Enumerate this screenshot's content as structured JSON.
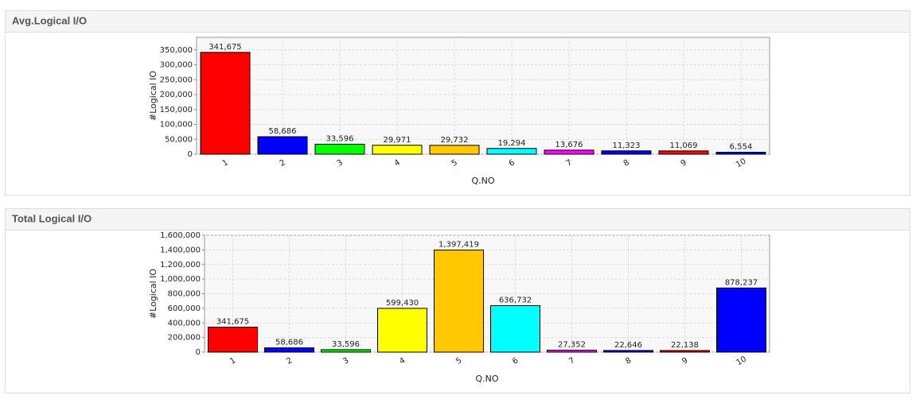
{
  "chart_data": [
    {
      "type": "bar",
      "title": "Avg.Logical I/O",
      "y_label": "#Logical IO",
      "x_label": "Q.NO",
      "categories": [
        "1",
        "2",
        "3",
        "4",
        "5",
        "6",
        "7",
        "8",
        "9",
        "10"
      ],
      "values": [
        341675,
        58686,
        33596,
        29971,
        29732,
        19294,
        13676,
        11323,
        11069,
        6554
      ],
      "value_labels": [
        "341,675",
        "58,686",
        "33,596",
        "29,971",
        "29,732",
        "19,294",
        "13,676",
        "11,323",
        "11,069",
        "6,554"
      ],
      "colors": [
        "#ff0000",
        "#0000ff",
        "#00ff00",
        "#ffff00",
        "#ffc800",
        "#00ffff",
        "#ff00ff",
        "#0000ff",
        "#ff0000",
        "#0000ff"
      ],
      "ylim": [
        0,
        392000
      ],
      "yticks": [
        0,
        {
          "value": 50000,
          "label": "50,000"
        },
        {
          "value": 100000,
          "label": "100,000"
        },
        {
          "value": 150000,
          "label": "150,000"
        },
        {
          "value": 200000,
          "label": "200,000"
        },
        {
          "value": 250000,
          "label": "250,000"
        },
        {
          "value": 300000,
          "label": "300,000"
        },
        {
          "value": 350000,
          "label": "350,000"
        }
      ],
      "grid": true
    },
    {
      "type": "bar",
      "title": "Total Logical I/O",
      "y_label": "#Logical IO",
      "x_label": "Q.NO",
      "categories": [
        "1",
        "2",
        "3",
        "4",
        "5",
        "6",
        "7",
        "8",
        "9",
        "10"
      ],
      "values": [
        341675,
        58686,
        33596,
        599430,
        1397419,
        636732,
        27352,
        22646,
        22138,
        878237
      ],
      "value_labels": [
        "341,675",
        "58,686",
        "33,596",
        "599,430",
        "1,397,419",
        "636,732",
        "27,352",
        "22,646",
        "22,138",
        "878,237"
      ],
      "colors": [
        "#ff0000",
        "#0000ff",
        "#00ff00",
        "#ffff00",
        "#ffc800",
        "#00ffff",
        "#ff00ff",
        "#0000ff",
        "#ff0000",
        "#0000ff"
      ],
      "ylim": [
        0,
        1600000
      ],
      "yticks": [
        0,
        {
          "value": 200000,
          "label": "200,000"
        },
        {
          "value": 400000,
          "label": "400,000"
        },
        {
          "value": 600000,
          "label": "600,000"
        },
        {
          "value": 800000,
          "label": "800,000"
        },
        {
          "value": 1000000,
          "label": "1,000,000"
        },
        {
          "value": 1200000,
          "label": "1,200,000"
        },
        {
          "value": 1400000,
          "label": "1,400,000"
        },
        {
          "value": 1600000,
          "label": "1,600,000"
        }
      ],
      "grid": true
    }
  ]
}
